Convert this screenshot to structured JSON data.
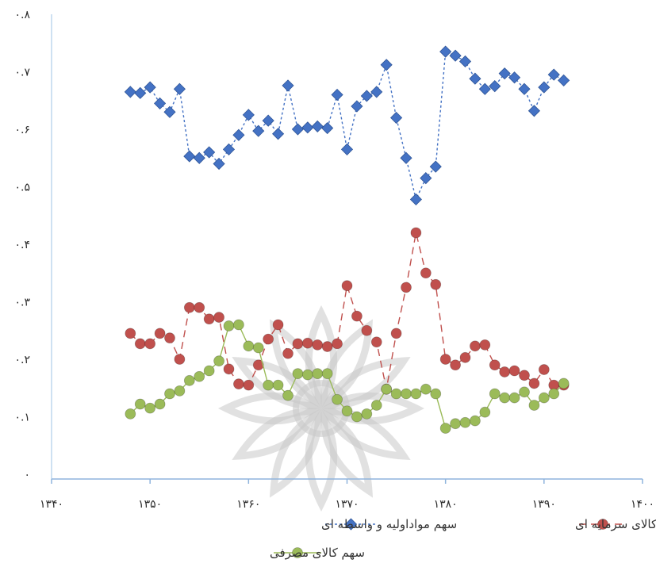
{
  "chart_data": {
    "type": "line",
    "grid": false,
    "legend_position": "bottom",
    "xlim": [
      1340,
      1400
    ],
    "ylim": [
      0,
      0.8
    ],
    "x_ticks": [
      1340,
      1350,
      1360,
      1370,
      1380,
      1390,
      1400
    ],
    "y_ticks": [
      0,
      0.1,
      0.2,
      0.3,
      0.4,
      0.5,
      0.6,
      0.7,
      0.8
    ],
    "x_tick_labels": [
      "۱۳۴۰",
      "۱۳۵۰",
      "۱۳۶۰",
      "۱۳۷۰",
      "۱۳۸۰",
      "۱۳۹۰",
      "۱۴۰۰"
    ],
    "y_tick_labels": [
      "۰",
      "۰.۱",
      "۰.۲",
      "۰.۳",
      "۰.۴",
      "۰.۵",
      "۰.۶",
      "۰.۷",
      "۰.۸"
    ],
    "x": [
      1348,
      1349,
      1350,
      1351,
      1352,
      1353,
      1354,
      1355,
      1356,
      1357,
      1358,
      1359,
      1360,
      1361,
      1362,
      1363,
      1364,
      1365,
      1366,
      1367,
      1368,
      1369,
      1370,
      1371,
      1372,
      1373,
      1374,
      1375,
      1376,
      1377,
      1378,
      1379,
      1380,
      1381,
      1382,
      1383,
      1384,
      1385,
      1386,
      1387,
      1388,
      1389,
      1390,
      1391,
      1392
    ],
    "series": [
      {
        "name": "سهم مواداولیه و واسطه ای",
        "color": "#4472c4",
        "marker": "diamond",
        "dash": "3,3",
        "values": [
          0.665,
          0.663,
          0.673,
          0.645,
          0.63,
          0.67,
          0.553,
          0.55,
          0.56,
          0.54,
          0.565,
          0.59,
          0.625,
          0.597,
          0.615,
          0.592,
          0.676,
          0.6,
          0.603,
          0.605,
          0.602,
          0.66,
          0.565,
          0.64,
          0.658,
          0.665,
          0.712,
          0.62,
          0.55,
          0.478,
          0.515,
          0.535,
          0.735,
          0.728,
          0.718,
          0.688,
          0.67,
          0.675,
          0.697,
          0.69,
          0.67,
          0.632,
          0.673,
          0.695,
          0.685
        ]
      },
      {
        "name": "سهم کالای سرمایه ای",
        "color": "#c0504d",
        "marker": "circle",
        "dash": "9,6",
        "values": [
          0.245,
          0.227,
          0.227,
          0.245,
          0.237,
          0.2,
          0.29,
          0.29,
          0.27,
          0.273,
          0.183,
          0.157,
          0.155,
          0.19,
          0.235,
          0.26,
          0.21,
          0.227,
          0.228,
          0.225,
          0.222,
          0.227,
          0.328,
          0.275,
          0.25,
          0.23,
          0.148,
          0.245,
          0.325,
          0.42,
          0.35,
          0.33,
          0.2,
          0.19,
          0.203,
          0.223,
          0.225,
          0.19,
          0.178,
          0.18,
          0.172,
          0.158,
          0.182,
          0.155,
          0.155
        ]
      },
      {
        "name": "سهم کالای مصرفی",
        "color": "#9bbb59",
        "marker": "circle",
        "dash": "",
        "values": [
          0.105,
          0.122,
          0.115,
          0.122,
          0.14,
          0.145,
          0.163,
          0.17,
          0.18,
          0.197,
          0.258,
          0.26,
          0.223,
          0.22,
          0.155,
          0.155,
          0.137,
          0.175,
          0.173,
          0.175,
          0.175,
          0.13,
          0.11,
          0.1,
          0.105,
          0.12,
          0.148,
          0.14,
          0.14,
          0.14,
          0.148,
          0.14,
          0.08,
          0.088,
          0.09,
          0.093,
          0.108,
          0.14,
          0.133,
          0.133,
          0.143,
          0.12,
          0.133,
          0.14,
          0.158
        ]
      }
    ]
  }
}
